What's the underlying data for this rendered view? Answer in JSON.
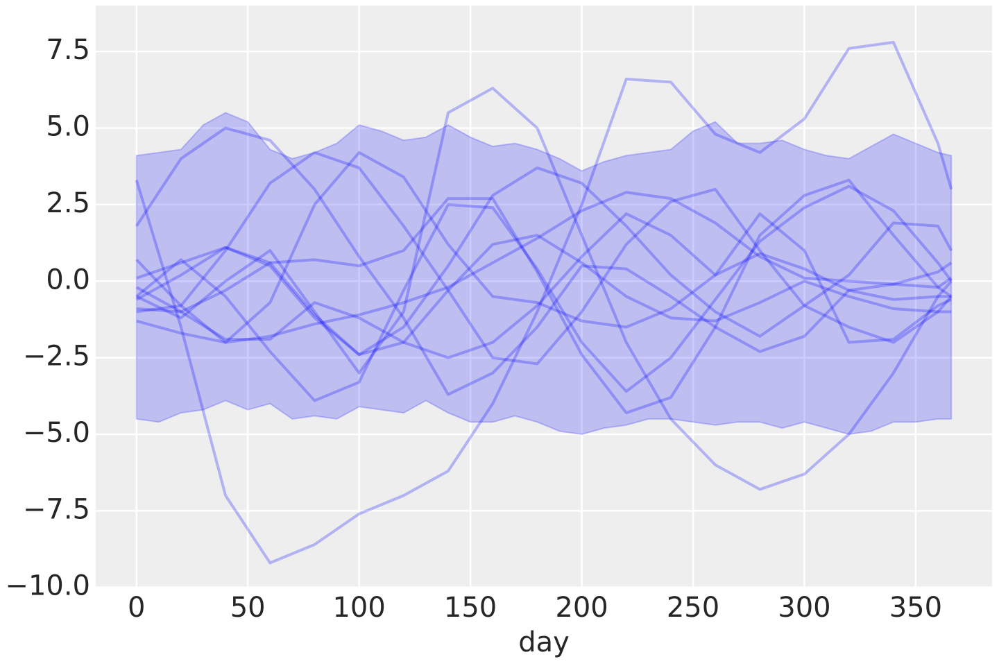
{
  "chart_data": {
    "type": "line",
    "xlabel": "day",
    "xlim": [
      -18.3,
      384.3
    ],
    "ylim": [
      -10.03,
      9.0
    ],
    "xticks": [
      0,
      50,
      100,
      150,
      200,
      250,
      300,
      350
    ],
    "yticks": [
      {
        "value": -10,
        "label": "−10.0"
      },
      {
        "value": -7.5,
        "label": "−7.5"
      },
      {
        "value": -5,
        "label": "−5.0"
      },
      {
        "value": -2.5,
        "label": "−2.5"
      },
      {
        "value": 0,
        "label": "0.0"
      },
      {
        "value": 2.5,
        "label": "2.5"
      },
      {
        "value": 5,
        "label": "5.0"
      },
      {
        "value": 7.5,
        "label": "7.5"
      }
    ],
    "grid": true,
    "background": "#eeeeee",
    "color": "#0000ff",
    "band": {
      "x": [
        0,
        10,
        20,
        30,
        40,
        50,
        60,
        70,
        80,
        90,
        100,
        110,
        120,
        130,
        140,
        150,
        160,
        170,
        180,
        190,
        200,
        210,
        220,
        230,
        240,
        250,
        260,
        270,
        280,
        290,
        300,
        310,
        320,
        330,
        340,
        350,
        360,
        366
      ],
      "upper": [
        4.1,
        4.2,
        4.3,
        5.1,
        5.5,
        5.2,
        4.3,
        4.0,
        4.2,
        4.5,
        5.1,
        4.9,
        4.6,
        4.7,
        5.1,
        4.7,
        4.4,
        4.5,
        4.3,
        4.0,
        3.6,
        3.9,
        4.1,
        4.2,
        4.3,
        4.9,
        5.2,
        4.5,
        4.5,
        4.6,
        4.3,
        4.1,
        4.0,
        4.4,
        4.8,
        4.5,
        4.2,
        4.1
      ],
      "lower": [
        -4.5,
        -4.6,
        -4.3,
        -4.2,
        -3.9,
        -4.2,
        -4.0,
        -4.5,
        -4.4,
        -4.5,
        -4.1,
        -4.2,
        -4.3,
        -3.9,
        -4.3,
        -4.6,
        -4.6,
        -4.4,
        -4.6,
        -4.9,
        -5.0,
        -4.8,
        -4.7,
        -4.5,
        -4.5,
        -4.6,
        -4.7,
        -4.6,
        -4.6,
        -4.8,
        -4.6,
        -4.8,
        -5.0,
        -4.9,
        -4.6,
        -4.6,
        -4.5,
        -4.5
      ]
    },
    "x": [
      0,
      20,
      40,
      60,
      80,
      100,
      120,
      140,
      160,
      180,
      200,
      220,
      240,
      260,
      280,
      300,
      320,
      340,
      360,
      366
    ],
    "series": [
      {
        "values": [
          3.3,
          -1.5,
          -7.0,
          -9.2,
          -8.6,
          -7.6,
          -7.0,
          -6.2,
          -4.0,
          -1.0,
          2.5,
          6.6,
          6.5,
          4.8,
          4.2,
          5.3,
          7.6,
          7.8,
          4.5,
          3.0
        ]
      },
      {
        "values": [
          -0.5,
          -1.2,
          0.0,
          1.0,
          -1.0,
          -3.0,
          -1.0,
          5.5,
          6.3,
          5.0,
          1.5,
          -2.0,
          -4.5,
          -6.0,
          -6.8,
          -6.3,
          -5.0,
          -3.0,
          -0.5,
          0.0
        ]
      },
      {
        "values": [
          1.8,
          4.0,
          5.0,
          4.6,
          3.0,
          0.8,
          -1.2,
          -3.7,
          -3.0,
          -1.5,
          0.5,
          0.4,
          -0.5,
          -1.5,
          -2.3,
          -1.8,
          -0.3,
          -0.1,
          0.3,
          0.6
        ]
      },
      {
        "values": [
          -0.5,
          0.7,
          -0.5,
          -2.3,
          -3.9,
          -3.3,
          -0.3,
          2.5,
          2.4,
          0.4,
          -2.0,
          -3.6,
          -2.5,
          -0.6,
          1.3,
          2.4,
          3.1,
          2.3,
          0.6,
          0.0
        ]
      },
      {
        "values": [
          -1.0,
          -0.8,
          1.0,
          3.2,
          4.2,
          3.7,
          1.8,
          -0.3,
          -2.5,
          -2.7,
          -1.0,
          1.2,
          2.6,
          3.0,
          1.0,
          -0.8,
          -1.5,
          -2.0,
          -1.0,
          -0.5
        ]
      },
      {
        "values": [
          0.1,
          0.6,
          1.1,
          0.5,
          -1.2,
          -2.4,
          -2.0,
          -0.3,
          1.2,
          1.5,
          0.6,
          -0.5,
          -1.2,
          -1.3,
          -0.7,
          0.0,
          -0.5,
          -0.9,
          -1.0,
          -1.0
        ]
      },
      {
        "values": [
          -1.3,
          -1.7,
          -2.0,
          -1.8,
          -1.4,
          -1.1,
          -0.7,
          -0.2,
          0.6,
          1.4,
          2.3,
          2.9,
          2.7,
          1.9,
          0.8,
          0.1,
          0.0,
          -0.1,
          -0.2,
          0.1
        ]
      },
      {
        "values": [
          0.7,
          -0.8,
          -2.0,
          -0.7,
          2.5,
          4.2,
          3.4,
          1.2,
          -0.5,
          -0.7,
          -1.3,
          -1.5,
          -0.9,
          0.2,
          0.9,
          0.4,
          -0.3,
          -0.6,
          -0.5,
          -0.5
        ]
      },
      {
        "values": [
          -0.2,
          -1.0,
          -1.9,
          -1.9,
          -0.7,
          -1.2,
          -2.0,
          -2.5,
          -2.0,
          -0.8,
          0.8,
          2.2,
          1.5,
          0.2,
          2.2,
          1.0,
          -2.0,
          -1.9,
          -0.8,
          -0.6
        ]
      },
      {
        "values": [
          -0.6,
          0.2,
          1.1,
          0.6,
          -1.1,
          -2.4,
          -1.5,
          0.5,
          2.8,
          3.7,
          3.2,
          1.8,
          0.2,
          -1.0,
          -1.8,
          -0.8,
          0.2,
          1.9,
          1.8,
          1.0
        ]
      },
      {
        "values": [
          -0.9,
          -1.0,
          -0.3,
          0.6,
          0.7,
          0.5,
          1.0,
          2.7,
          2.7,
          0.3,
          -2.4,
          -4.3,
          -3.8,
          -1.5,
          1.5,
          2.8,
          3.3,
          1.5,
          -0.2,
          -0.5
        ]
      }
    ]
  }
}
